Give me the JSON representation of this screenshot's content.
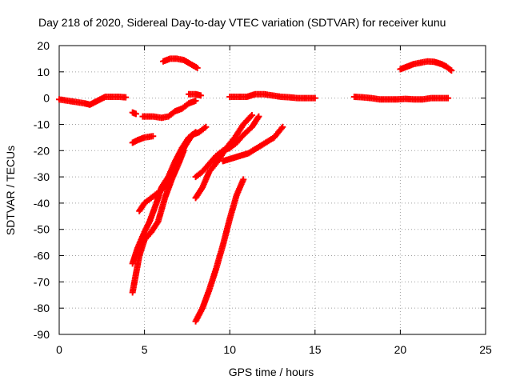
{
  "chart_data": {
    "type": "scatter",
    "title": "Day 218 of 2020, Sidereal Day-to-day VTEC variation (SDTVAR) for receiver kunu",
    "xlabel": "GPS time / hours",
    "ylabel": "SDTVAR / TECUs",
    "xlim": [
      0,
      25
    ],
    "ylim": [
      -90,
      20
    ],
    "xticks": [
      0,
      5,
      10,
      15,
      20,
      25
    ],
    "yticks": [
      -90,
      -80,
      -70,
      -60,
      -50,
      -40,
      -30,
      -20,
      -10,
      0,
      10,
      20
    ],
    "grid": true,
    "legend": "none",
    "marker": "plus",
    "color": "#ff0000",
    "series": [
      {
        "points": [
          [
            0,
            -0.5
          ],
          [
            0.5,
            -1
          ],
          [
            1,
            -1.5
          ],
          [
            1.5,
            -2
          ],
          [
            1.8,
            -2.5
          ],
          [
            2.1,
            -1.5
          ],
          [
            2.4,
            -0.5
          ],
          [
            2.7,
            0.5
          ],
          [
            3,
            0.5
          ],
          [
            3.5,
            0.5
          ],
          [
            3.9,
            0.3
          ]
        ]
      },
      {
        "points": [
          [
            4.3,
            -5.5
          ],
          [
            4.5,
            -6
          ]
        ]
      },
      {
        "points": [
          [
            4.3,
            -17
          ],
          [
            4.6,
            -16
          ],
          [
            5,
            -15
          ],
          [
            5.5,
            -14.5
          ]
        ]
      },
      {
        "points": [
          [
            4.3,
            -74
          ],
          [
            4.5,
            -67
          ],
          [
            4.7,
            -60
          ],
          [
            5,
            -54
          ],
          [
            5.4,
            -51
          ],
          [
            5.8,
            -47
          ],
          [
            6.2,
            -38
          ],
          [
            6.6,
            -31
          ],
          [
            7,
            -25
          ],
          [
            7.3,
            -20
          ]
        ]
      },
      {
        "points": [
          [
            4.3,
            -63
          ],
          [
            4.6,
            -57
          ],
          [
            5,
            -51
          ],
          [
            5.3,
            -47
          ],
          [
            5.7,
            -40
          ],
          [
            6,
            -34
          ],
          [
            6.4,
            -30
          ],
          [
            6.8,
            -24
          ],
          [
            7.2,
            -19
          ],
          [
            7.6,
            -15
          ],
          [
            8,
            -13
          ]
        ]
      },
      {
        "points": [
          [
            4.7,
            -43
          ],
          [
            5,
            -40
          ],
          [
            5.4,
            -38
          ],
          [
            5.8,
            -36
          ],
          [
            6.2,
            -34
          ],
          [
            6.6,
            -29
          ],
          [
            7,
            -23
          ],
          [
            7.4,
            -18
          ],
          [
            7.8,
            -14
          ],
          [
            8.2,
            -13
          ],
          [
            8.6,
            -11
          ]
        ]
      },
      {
        "points": [
          [
            4.9,
            -7
          ],
          [
            5.5,
            -7
          ],
          [
            6,
            -7.5
          ],
          [
            6.4,
            -7
          ],
          [
            6.8,
            -5
          ],
          [
            7.2,
            -4
          ],
          [
            7.6,
            -2
          ],
          [
            8,
            -1
          ]
        ]
      },
      {
        "points": [
          [
            6.1,
            14
          ],
          [
            6.5,
            15
          ],
          [
            6.9,
            15
          ],
          [
            7.3,
            14.5
          ],
          [
            7.7,
            13
          ],
          [
            8.1,
            11.5
          ]
        ]
      },
      {
        "points": [
          [
            7.6,
            1.5
          ],
          [
            8,
            1.5
          ],
          [
            8.3,
            1
          ]
        ]
      },
      {
        "points": [
          [
            8.0,
            -85
          ],
          [
            8.4,
            -80
          ],
          [
            8.8,
            -73
          ],
          [
            9.2,
            -65
          ],
          [
            9.6,
            -56
          ],
          [
            10,
            -46
          ],
          [
            10.4,
            -37
          ],
          [
            10.8,
            -31
          ]
        ]
      },
      {
        "points": [
          [
            8.0,
            -38
          ],
          [
            8.4,
            -34
          ],
          [
            8.8,
            -28
          ],
          [
            9.3,
            -24
          ],
          [
            9.8,
            -19
          ],
          [
            10.3,
            -15
          ],
          [
            10.8,
            -10
          ],
          [
            11.3,
            -6.5
          ]
        ]
      },
      {
        "points": [
          [
            8.0,
            -30
          ],
          [
            8.4,
            -28
          ],
          [
            8.8,
            -25
          ],
          [
            9.2,
            -22
          ],
          [
            9.6,
            -20
          ],
          [
            10,
            -19
          ],
          [
            10.4,
            -17
          ],
          [
            10.8,
            -14
          ],
          [
            11.3,
            -11
          ],
          [
            11.7,
            -7
          ]
        ]
      },
      {
        "points": [
          [
            9.6,
            -24
          ],
          [
            10.1,
            -23
          ],
          [
            10.6,
            -22
          ],
          [
            11.1,
            -21
          ],
          [
            11.6,
            -19
          ],
          [
            12.1,
            -17
          ],
          [
            12.6,
            -15
          ],
          [
            13.1,
            -11
          ]
        ]
      },
      {
        "points": [
          [
            10,
            0.5
          ],
          [
            10.5,
            0.5
          ],
          [
            11,
            0.5
          ],
          [
            11.5,
            1.5
          ],
          [
            12,
            1.5
          ],
          [
            12.5,
            1
          ],
          [
            13,
            0.5
          ],
          [
            13.5,
            0.3
          ],
          [
            14,
            0
          ],
          [
            14.5,
            0
          ],
          [
            15,
            0
          ]
        ]
      },
      {
        "points": [
          [
            17.3,
            0.5
          ],
          [
            17.8,
            0.3
          ],
          [
            18.3,
            0
          ],
          [
            18.8,
            -0.5
          ],
          [
            19.3,
            -0.5
          ],
          [
            19.8,
            -0.5
          ],
          [
            20.3,
            -0.3
          ],
          [
            20.8,
            -0.5
          ],
          [
            21.3,
            -0.5
          ],
          [
            21.8,
            0
          ],
          [
            22.3,
            0
          ],
          [
            22.8,
            0
          ]
        ]
      },
      {
        "points": [
          [
            20,
            11
          ],
          [
            20.4,
            12
          ],
          [
            20.8,
            13
          ],
          [
            21.2,
            13.5
          ],
          [
            21.6,
            14
          ],
          [
            22,
            13.8
          ],
          [
            22.4,
            13
          ],
          [
            22.7,
            12
          ],
          [
            23,
            10.5
          ]
        ]
      }
    ]
  }
}
